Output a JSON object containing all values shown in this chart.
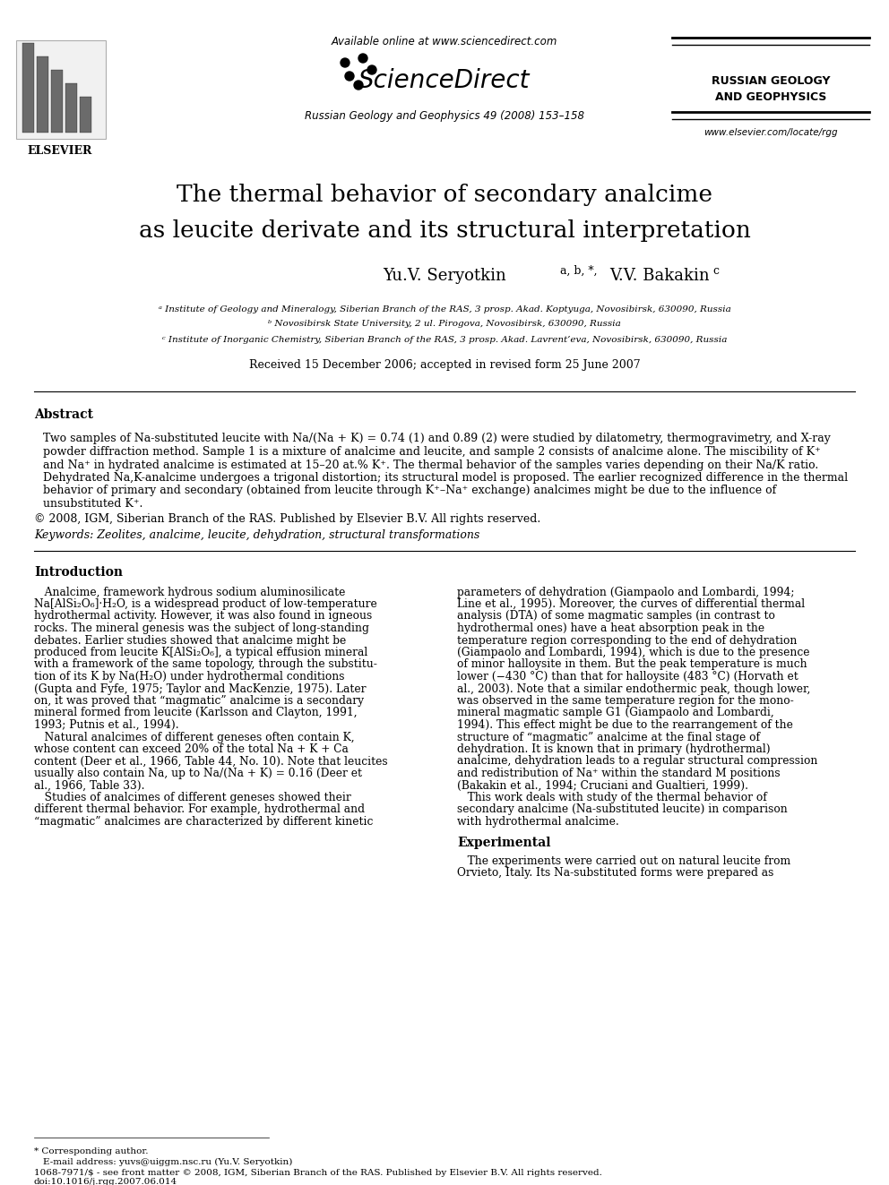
{
  "title_line1": "The thermal behavior of secondary analcime",
  "title_line2": "as leucite derivate and its structural interpretation",
  "authors": "Yu.V. Seryotkin ᵃ ᵇ, *, V.V. Bakakin ᶜ",
  "authors_plain": "Yu.V. Seryotkin",
  "author2": "V.V. Bakakin",
  "affil_a": "ᵃ Institute of Geology and Mineralogy, Siberian Branch of the RAS, 3 prosp. Akad. Koptyuga, Novosibirsk, 630090, Russia",
  "affil_b": "ᵇ Novosibirsk State University, 2 ul. Pirogova, Novosibirsk, 630090, Russia",
  "affil_c": "ᶜ Institute of Inorganic Chemistry, Siberian Branch of the RAS, 3 prosp. Akad. Lavrent’eva, Novosibirsk, 630090, Russia",
  "received": "Received 15 December 2006; accepted in revised form 25 June 2007",
  "journal_ref": "Russian Geology and Geophysics 49 (2008) 153–158",
  "available_online": "Available online at www.sciencedirect.com",
  "journal_name_right": "RUSSIAN GEOLOGY\nAND GEOPHYSICS",
  "website": "www.elsevier.com/locate/rgg",
  "abstract_title": "Abstract",
  "abstract_text": "Two samples of Na-substituted leucite with Na/(Na + K) = 0.74 (1) and 0.89 (2) were studied by dilatometry, thermogravimetry, and X-ray powder diffraction method. Sample 1 is a mixture of analcime and leucite, and sample 2 consists of analcime alone. The miscibility of K⁺ and Na⁺ in hydrated analcime is estimated at 15–20 at.% K⁺. The thermal behavior of the samples varies depending on their Na/K ratio. Dehydrated Na,K-analcime undergoes a trigonal distortion; its structural model is proposed. The earlier recognized difference in the thermal behavior of primary and secondary (obtained from leucite through K⁺–Na⁺ exchange) analcimes might be due to the influence of unsubstituted K⁺.",
  "copyright": "© 2008, IGM, Siberian Branch of the RAS. Published by Elsevier B.V. All rights reserved.",
  "keywords": "Keywords: Zeolites, analcime, leucite, dehydration, structural transformations",
  "intro_title": "Introduction",
  "intro_text_left": "Analcime, framework hydrous sodium aluminosilicate Na[AlSi₂O₆]·H₂O, is a widespread product of low-temperature hydrothermal activity. However, it was also found in igneous rocks. The mineral genesis was the subject of long-standing debates. Earlier studies showed that analcime might be produced from leucite K[AlSi₂O₆], a typical effusion mineral with a framework of the same topology, through the substitution of its K by Na(H₂O) under hydrothermal conditions (Gupta and Fyfe, 1975; Taylor and MacKenzie, 1975). Later on, it was proved that “magmatic” analcime is a secondary mineral formed from leucite (Karlsson and Clayton, 1991, 1993; Putnis et al., 1994).\n    Natural analcimes of different geneses often contain K, whose content can exceed 20% of the total Na + K + Ca content (Deer et al., 1966, Table 44, No. 10). Note that leucites usually also contain Na, up to Na/(Na + K) = 0.16 (Deer et al., 1966, Table 33).\n    Studies of analcimes of different geneses showed their different thermal behavior. For example, hydrothermal and “magmatic” analcimes are characterized by different kinetic",
  "intro_text_right": "parameters of dehydration (Giampaolo and Lombardi, 1994; Line et al., 1995). Moreover, the curves of differential thermal analysis (DTA) of some magmatic samples (in contrast to hydrothermal ones) have a heat absorption peak in the temperature region corresponding to the end of dehydration (Giampaolo and Lombardi, 1994), which is due to the presence of minor halloysite in them. But the peak temperature is much lower (−430 °C) than that for halloysite (483 °C) (Horvath et al., 2003). Note that a similar endothermic peak, though lower, was observed in the same temperature region for the mono-mineral magmatic sample G1 (Giampaolo and Lombardi, 1994). This effect might be due to the rearrangement of the structure of “magmatic” analcime at the final stage of dehydration. It is known that in primary (hydrothermal) analcime, dehydration leads to a regular structural compression and redistribution of Na⁺ within the standard M positions (Bakakin et al., 1994; Cruciani and Gualtieri, 1999).\n    This work deals with study of the thermal behavior of secondary analcime (Na-substituted leucite) in comparison with hydrothermal analcime.",
  "experimental_title": "Experimental",
  "experimental_text_right": "The experiments were carried out on natural leucite from Orvieto, Italy. Its Na-substituted forms were prepared as",
  "footer_note": "* Corresponding author.\n  E-mail address: yuvs@uiggm.nsc.ru (Yu.V. Seryotkin)",
  "footer_issn": "1068-7971/$ - see front matter © 2008, IGM, Siberian Branch of the RAS. Published by Elsevier B.V. All rights reserved.",
  "footer_doi": "doi:10.1016/j.rgg.2007.06.014",
  "bg_color": "#ffffff",
  "text_color": "#000000"
}
